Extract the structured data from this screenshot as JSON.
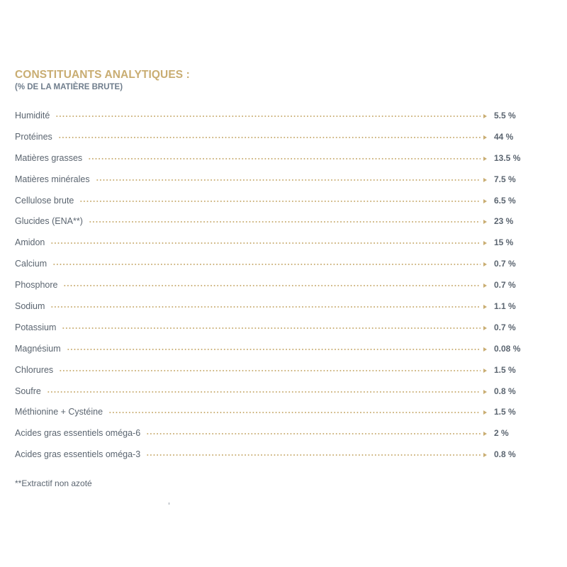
{
  "header": {
    "title": "CONSTITUANTS ANALYTIQUES :",
    "subtitle": "(% DE LA MATIÈRE BRUTE)"
  },
  "rows": [
    {
      "label": "Humidité",
      "value": "5.5 %"
    },
    {
      "label": "Protéines",
      "value": "44 %"
    },
    {
      "label": "Matières grasses",
      "value": "13.5 %"
    },
    {
      "label": "Matières minérales",
      "value": "7.5 %"
    },
    {
      "label": "Cellulose brute",
      "value": "6.5 %"
    },
    {
      "label": "Glucides (ENA**)",
      "value": "23 %"
    },
    {
      "label": "Amidon",
      "value": "15 %"
    },
    {
      "label": "Calcium",
      "value": "0.7 %"
    },
    {
      "label": "Phosphore",
      "value": "0.7 %"
    },
    {
      "label": "Sodium",
      "value": "1.1 %"
    },
    {
      "label": "Potassium",
      "value": "0.7 %"
    },
    {
      "label": "Magnésium",
      "value": "0.08 %"
    },
    {
      "label": "Chlorures",
      "value": "1.5 %"
    },
    {
      "label": "Soufre",
      "value": "0.8 %"
    },
    {
      "label": "Méthionine + Cystéine",
      "value": "1.5 %"
    },
    {
      "label": "Acides gras essentiels oméga-6",
      "value": "2 %"
    },
    {
      "label": "Acides gras essentiels oméga-3",
      "value": "0.8 %"
    }
  ],
  "footnote": "**Extractif non azoté",
  "colors": {
    "title": "#c9ad72",
    "subtitle": "#6f7d8c",
    "text": "#5b6570",
    "leader": "#c9ad72"
  }
}
